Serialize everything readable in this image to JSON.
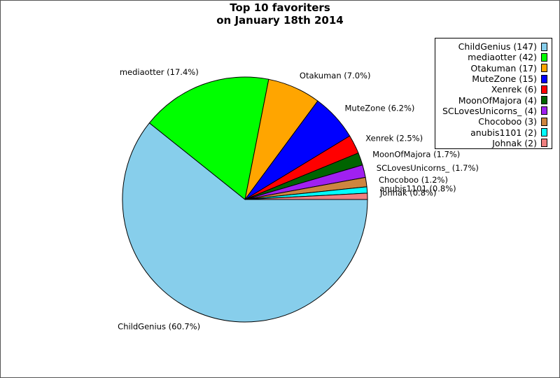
{
  "chart_data": {
    "type": "pie",
    "title": [
      "Top 10 favoriters",
      "on January 18th 2014"
    ],
    "slices": [
      {
        "name": "ChildGenius",
        "count": 147,
        "percent_label": "60.7%",
        "color": "#87ceeb"
      },
      {
        "name": "mediaotter",
        "count": 42,
        "percent_label": "17.4%",
        "color": "#00ff00"
      },
      {
        "name": "Otakuman",
        "count": 17,
        "percent_label": "7.0%",
        "color": "#ffa500"
      },
      {
        "name": "MuteZone",
        "count": 15,
        "percent_label": "6.2%",
        "color": "#0000ff"
      },
      {
        "name": "Xenrek",
        "count": 6,
        "percent_label": "2.5%",
        "color": "#ff0000"
      },
      {
        "name": "MoonOfMajora",
        "count": 4,
        "percent_label": "1.7%",
        "color": "#006400"
      },
      {
        "name": "SCLovesUnicorns_",
        "count": 4,
        "percent_label": "1.7%",
        "color": "#a020f0"
      },
      {
        "name": "Chocoboo",
        "count": 3,
        "percent_label": "1.2%",
        "color": "#cd853f"
      },
      {
        "name": "anubis1101",
        "count": 2,
        "percent_label": "0.8%",
        "color": "#00ffff"
      },
      {
        "name": "Johnak",
        "count": 2,
        "percent_label": "0.8%",
        "color": "#f08080"
      }
    ],
    "legend_position": "top-right",
    "start_angle": "0 degrees (3 o'clock)",
    "direction": "clockwise"
  }
}
